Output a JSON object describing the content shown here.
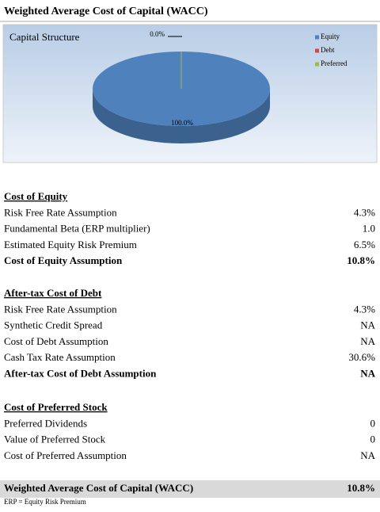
{
  "header": {
    "title": "Weighted Average Cost of Capital (WACC)"
  },
  "chart_data": {
    "type": "pie",
    "title": "Capital Structure",
    "categories": [
      "Equity",
      "Debt",
      "Preferred"
    ],
    "values": [
      100,
      0,
      0
    ],
    "value_labels": [
      "100.0%",
      "0.0%",
      null
    ],
    "colors": [
      "#4f81bd",
      "#c0504d",
      "#9bbb59"
    ],
    "legend": "top-right"
  },
  "sections": [
    {
      "heading": "Cost of Equity",
      "rows": [
        [
          "Risk Free Rate Assumption",
          "4.3%"
        ],
        [
          "Fundamental Beta (ERP multiplier)",
          "1.0"
        ],
        [
          "Estimated Equity Risk Premium",
          "6.5%"
        ]
      ],
      "summary": [
        "Cost of Equity Assumption",
        "10.8%"
      ]
    },
    {
      "heading": "After-tax Cost of Debt",
      "rows": [
        [
          "Risk Free Rate Assumption",
          "4.3%"
        ],
        [
          "Synthetic Credit Spread",
          "NA"
        ],
        [
          "Cost of Debt Assumption",
          "NA"
        ],
        [
          "Cash Tax Rate Assumption",
          "30.6%"
        ]
      ],
      "summary": [
        "After-tax Cost of Debt Assumption",
        "NA"
      ]
    },
    {
      "heading": "Cost of Preferred Stock",
      "rows": [
        [
          "Preferred Dividends",
          "0"
        ],
        [
          "Value of Preferred Stock",
          "0"
        ],
        [
          "Cost of Preferred Assumption",
          "NA"
        ]
      ]
    }
  ],
  "footer": {
    "label": "Weighted Average Cost of Capital (WACC)",
    "value": "10.8%",
    "note": "ERP = Equity Risk Premium"
  }
}
